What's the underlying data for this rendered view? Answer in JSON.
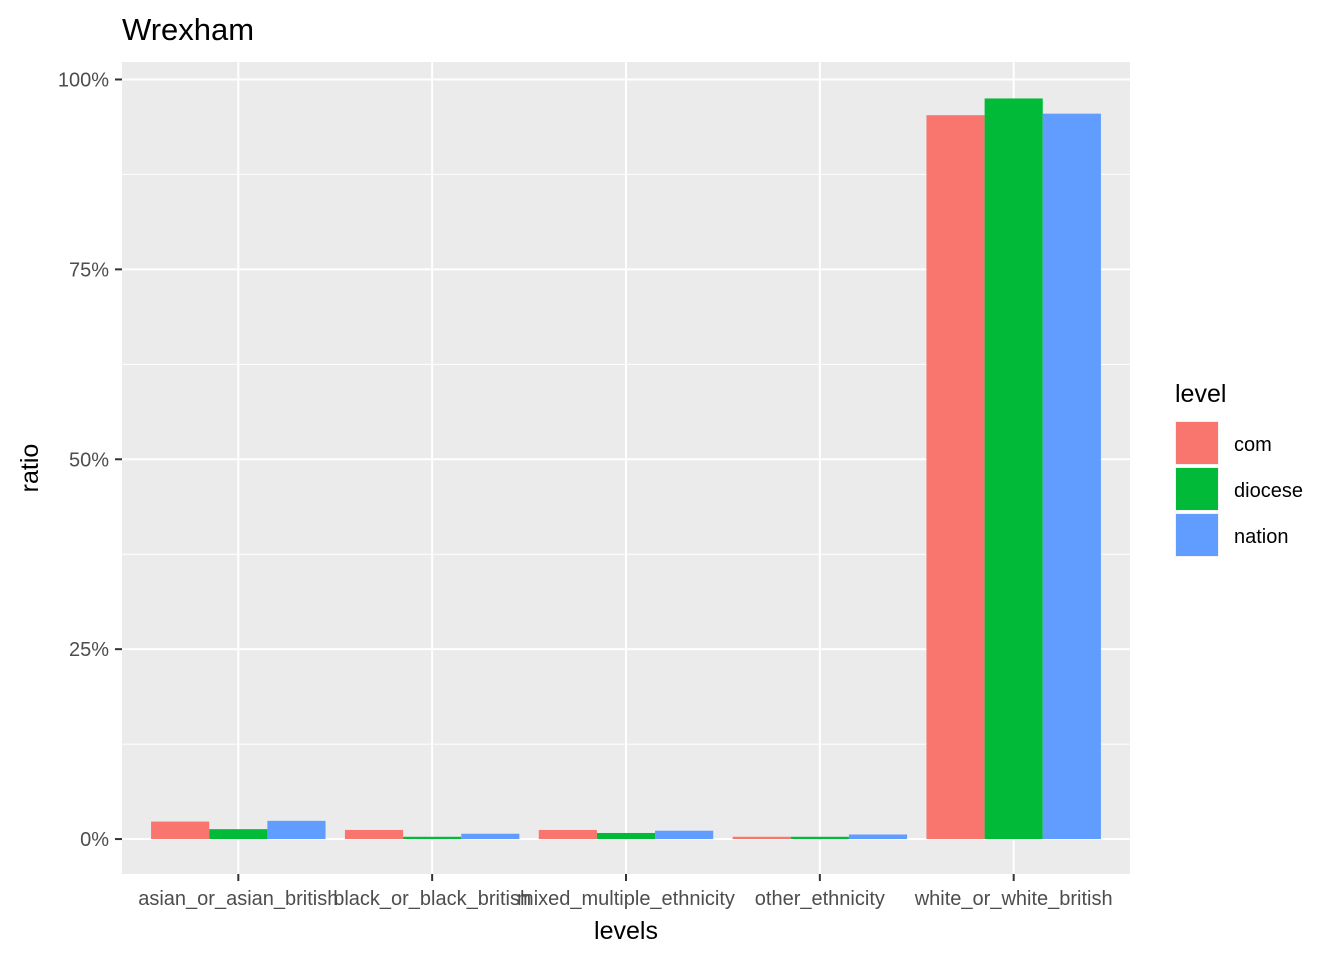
{
  "chart_data": {
    "type": "bar",
    "title": "Wrexham",
    "xlabel": "levels",
    "ylabel": "ratio",
    "categories": [
      "asian_or_asian_british",
      "black_or_black_british",
      "mixed_multiple_ethnicity",
      "other_ethnicity",
      "white_or_white_british"
    ],
    "series": [
      {
        "name": "com",
        "color": "#F8766D",
        "values": [
          0.023,
          0.012,
          0.012,
          0.003,
          0.953
        ]
      },
      {
        "name": "diocese",
        "color": "#00BA38",
        "values": [
          0.013,
          0.003,
          0.008,
          0.003,
          0.975
        ]
      },
      {
        "name": "nation",
        "color": "#619CFF",
        "values": [
          0.024,
          0.007,
          0.011,
          0.006,
          0.955
        ]
      }
    ],
    "ylim": [
      -0.046,
      1.023
    ],
    "yticks": [
      0,
      0.25,
      0.5,
      0.75,
      1.0
    ],
    "ytick_labels": [
      "0%",
      "25%",
      "50%",
      "75%",
      "100%"
    ],
    "legend": {
      "title": "level",
      "position": "right"
    },
    "grid": true,
    "colors": {
      "panel_bg": "#EBEBEB",
      "grid": "#FFFFFF"
    }
  }
}
